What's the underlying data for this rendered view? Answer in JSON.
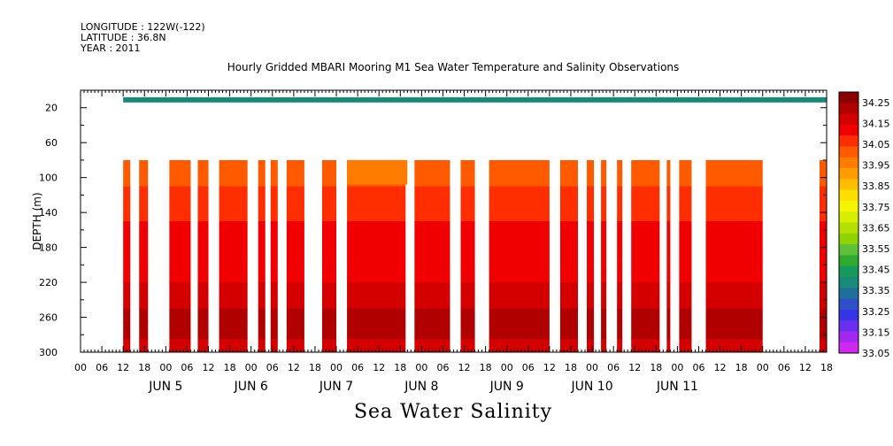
{
  "header": {
    "longitude": "LONGITUDE : 122W(-122)",
    "latitude": "LATITUDE : 36.8N",
    "year": "YEAR : 2011"
  },
  "chart_data": {
    "type": "heatmap",
    "title": "Hourly Gridded MBARI Mooring M1 Sea Water Temperature and Salinity Observations",
    "xlabel": "Sea Water Salinity",
    "ylabel": "DEPTH (m)",
    "x_unit": "hours since 2011-06-05 00:00",
    "xlim": [
      -12,
      198
    ],
    "ylim": [
      300,
      0
    ],
    "y_ticks": [
      20,
      60,
      100,
      140,
      180,
      220,
      260,
      300
    ],
    "x_hour_ticks": [
      "00",
      "06",
      "12",
      "18",
      "00",
      "06",
      "12",
      "18",
      "00",
      "06",
      "12",
      "18",
      "00",
      "06",
      "12",
      "18",
      "00",
      "06",
      "12",
      "18",
      "00",
      "06",
      "12",
      "18",
      "00",
      "06",
      "12",
      "18",
      "00",
      "06",
      "12",
      "18",
      "00",
      "06",
      "12",
      "18"
    ],
    "x_day_labels": [
      "JUN  5",
      "JUN  6",
      "JUN  7",
      "JUN  8",
      "JUN  9",
      "JUN 10",
      "JUN 11"
    ],
    "colorbar_labels": [
      "34.25",
      "34.15",
      "34.05",
      "33.95",
      "33.85",
      "33.75",
      "33.65",
      "33.55",
      "33.45",
      "33.35",
      "33.25",
      "33.15",
      "33.05"
    ],
    "colorbar_colors": [
      "#8b0000",
      "#b00000",
      "#d40000",
      "#f00000",
      "#ff2e00",
      "#ff5a00",
      "#ff7c00",
      "#ff9d00",
      "#ffbe00",
      "#ffde00",
      "#f5f500",
      "#d8ee00",
      "#b4e000",
      "#8fd400",
      "#5cc038",
      "#2eaa2e",
      "#16995a",
      "#1a8a78",
      "#1f6f9a",
      "#2d50c8",
      "#3535e8",
      "#6a30f0",
      "#a228f0",
      "#d028f0"
    ],
    "colorbar_range": [
      33.05,
      34.3
    ],
    "surface_band": {
      "depth_top": 8,
      "depth_bottom": 14,
      "x_start": 0,
      "x_end": 198,
      "salinity": 33.4
    },
    "data_depth_range": [
      80,
      300
    ],
    "data_segments": [
      [
        0,
        2
      ],
      [
        4.5,
        7
      ],
      [
        13,
        19
      ],
      [
        21,
        24
      ],
      [
        27,
        35
      ],
      [
        38,
        40
      ],
      [
        41.5,
        43.5
      ],
      [
        46,
        51
      ],
      [
        56,
        60
      ],
      [
        63,
        79.5
      ],
      [
        82,
        92
      ],
      [
        95,
        99
      ],
      [
        103,
        120
      ],
      [
        123,
        128
      ],
      [
        130.5,
        132.5
      ],
      [
        134.5,
        136
      ],
      [
        139,
        140.5
      ],
      [
        143,
        151
      ],
      [
        153,
        154
      ],
      [
        156.5,
        160
      ],
      [
        164,
        180
      ],
      [
        196,
        198
      ]
    ],
    "profile": [
      {
        "depth": 80,
        "salinity": 34.02
      },
      {
        "depth": 110,
        "salinity": 34.08
      },
      {
        "depth": 150,
        "salinity": 34.13
      },
      {
        "depth": 190,
        "salinity": 34.13
      },
      {
        "depth": 220,
        "salinity": 34.16
      },
      {
        "depth": 250,
        "salinity": 34.22
      },
      {
        "depth": 265,
        "salinity": 34.23
      },
      {
        "depth": 285,
        "salinity": 34.16
      },
      {
        "depth": 300,
        "salinity": 34.14
      }
    ],
    "fresh_window": {
      "x_start": 63,
      "x_end": 80,
      "depth_top": 80,
      "depth_bottom": 108,
      "salinity": 33.95
    }
  }
}
